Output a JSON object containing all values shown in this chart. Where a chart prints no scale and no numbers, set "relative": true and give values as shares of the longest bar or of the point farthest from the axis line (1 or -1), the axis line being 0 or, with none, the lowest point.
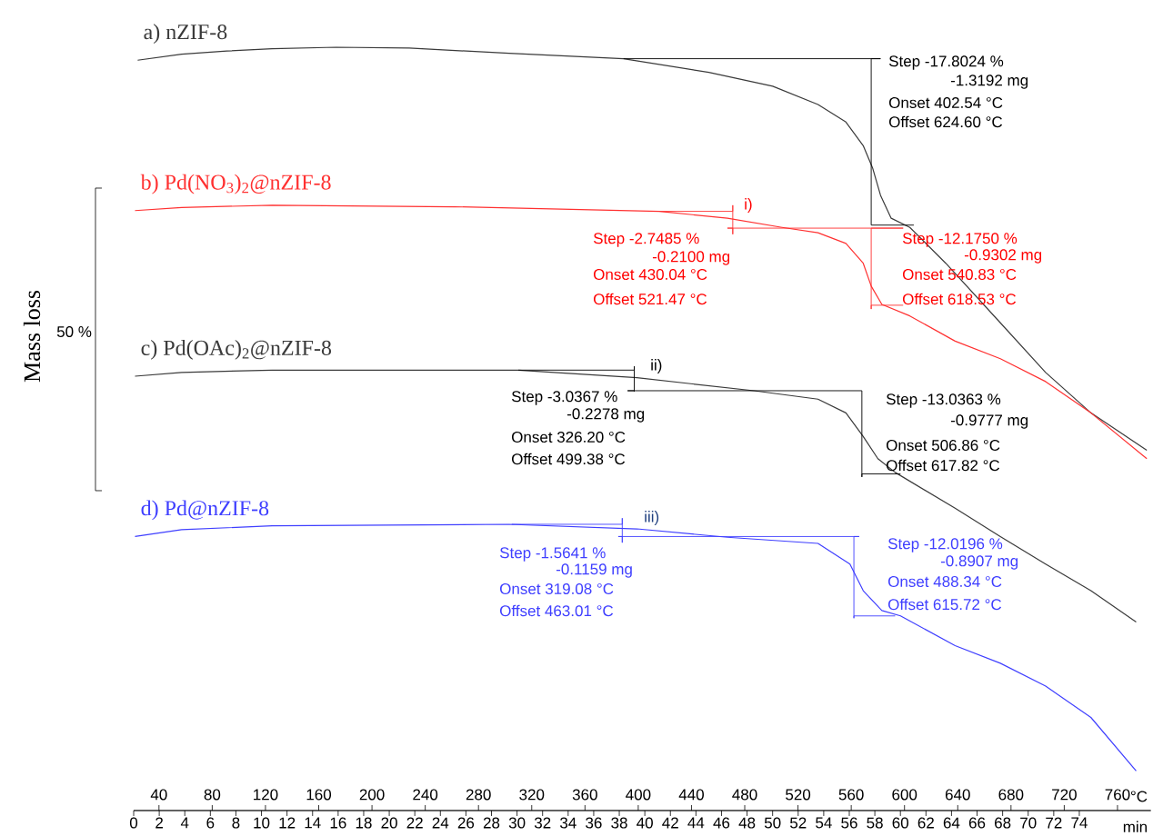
{
  "chart_data": {
    "type": "line",
    "relative": true,
    "ylabel": "Mass loss",
    "xlabel": "°C",
    "x2label": "min",
    "xlim": [
      21,
      785
    ],
    "xticks": [
      40,
      80,
      120,
      160,
      200,
      240,
      280,
      320,
      360,
      400,
      440,
      480,
      520,
      560,
      600,
      640,
      680,
      720,
      760
    ],
    "x2lim": [
      0,
      79.6
    ],
    "x2ticks": [
      0,
      2,
      4,
      6,
      8,
      10,
      12,
      14,
      16,
      18,
      20,
      22,
      24,
      26,
      28,
      30,
      32,
      34,
      36,
      38,
      40,
      42,
      44,
      46,
      48,
      50,
      52,
      54,
      56,
      58,
      60,
      62,
      64,
      66,
      68,
      70,
      72,
      74
    ],
    "series": [
      {
        "name": "a) nZIF-8",
        "color": "#3a3a3a",
        "x": [
          24,
          57,
          91,
          125,
          173,
          228,
          303,
          389,
          453,
          501,
          535,
          556,
          569,
          576,
          582,
          590,
          604,
          631,
          672,
          706,
          740,
          782
        ],
        "values": [
          0.983,
          0.991,
          0.995,
          0.998,
          1.0,
          0.999,
          0.992,
          0.985,
          0.967,
          0.949,
          0.925,
          0.902,
          0.871,
          0.842,
          0.806,
          0.776,
          0.764,
          0.717,
          0.639,
          0.574,
          0.521,
          0.472
        ]
      },
      {
        "name": "b) Pd(NO$_{3}$)$_{2}$@nZIF-8",
        "color": "#ff3030",
        "x": [
          22,
          57,
          125,
          262,
          416,
          467,
          508,
          535,
          556,
          569,
          575,
          583,
          604,
          638,
          672,
          706,
          740,
          782
        ],
        "values": [
          0.786,
          0.79,
          0.793,
          0.791,
          0.785,
          0.776,
          0.764,
          0.757,
          0.743,
          0.717,
          0.687,
          0.663,
          0.648,
          0.615,
          0.592,
          0.562,
          0.521,
          0.461
        ]
      },
      {
        "name": "c) Pd(OAc)$_{2}$@nZIF-8",
        "color": "#3a3a3a",
        "x": [
          22,
          57,
          125,
          310,
          399,
          487,
          535,
          556,
          569,
          580,
          593,
          638,
          672,
          706,
          740,
          774
        ],
        "values": [
          0.569,
          0.574,
          0.577,
          0.577,
          0.567,
          0.55,
          0.539,
          0.521,
          0.49,
          0.461,
          0.443,
          0.396,
          0.359,
          0.323,
          0.288,
          0.247
        ]
      },
      {
        "name": "d) Pd@nZIF-8",
        "color": "#3f3fff",
        "x": [
          22,
          57,
          125,
          303,
          399,
          467,
          535,
          559,
          569,
          583,
          597,
          638,
          672,
          706,
          740,
          774
        ],
        "values": [
          0.359,
          0.368,
          0.373,
          0.375,
          0.369,
          0.358,
          0.35,
          0.323,
          0.288,
          0.262,
          0.255,
          0.216,
          0.193,
          0.163,
          0.122,
          0.052
        ]
      },
      {
        "type": "line",
        "color": "#000000",
        "x": [
          389,
          582,
          575,
          575,
          607
        ],
        "values": [
          0.985,
          0.985,
          0.985,
          0.767,
          0.767
        ]
      },
      {
        "type": "line",
        "color": "#ff3030",
        "x": [
          416,
          471,
          471,
          471,
          471,
          467,
          599,
          575,
          575,
          575,
          599
        ],
        "values": [
          0.785,
          0.785,
          0.793,
          0.755,
          0.763,
          0.763,
          0.763,
          0.763,
          0.657,
          0.662,
          0.662
        ]
      },
      {
        "type": "line",
        "color": "#000000",
        "x": [
          310,
          397,
          397,
          397,
          397,
          392,
          568,
          568,
          568,
          597
        ],
        "values": [
          0.577,
          0.577,
          0.582,
          0.549,
          0.55,
          0.55,
          0.55,
          0.437,
          0.441,
          0.441
        ]
      },
      {
        "type": "line",
        "color": "#3f3fff",
        "x": [
          305,
          388,
          388,
          388,
          388,
          385,
          566,
          562,
          562,
          562,
          593
        ],
        "values": [
          0.375,
          0.375,
          0.383,
          0.351,
          0.359,
          0.359,
          0.359,
          0.359,
          0.252,
          0.255,
          0.255
        ]
      }
    ],
    "annotations": [
      "Step -17.8024 %",
      "-1.3192 mg",
      "Onset 402.54 °C",
      "Offset 624.60 °C",
      "i)",
      "Step -2.7485 %",
      "-0.2100 mg",
      "Onset 430.04 °C",
      "Offset 521.47 °C",
      "Step -12.1750 %",
      "-0.9302 mg",
      "Onset 540.83 °C",
      "Offset 618.53 °C",
      "ii)",
      "Step -3.0367 %",
      "-0.2278 mg",
      "Onset 326.20 °C",
      "Offset 499.38 °C",
      "Step -13.0363 %",
      "-0.9777 mg",
      "Onset 506.86 °C",
      "Offset 617.82 °C",
      "iii)",
      "Step -1.5641 %",
      "-0.1159 mg",
      "Onset 319.08 °C",
      "Offset 463.01 °C",
      "Step -12.0196 %",
      "-0.8907 mg",
      "Onset 488.34 °C",
      "Offset 615.72 °C",
      "50 %"
    ]
  }
}
